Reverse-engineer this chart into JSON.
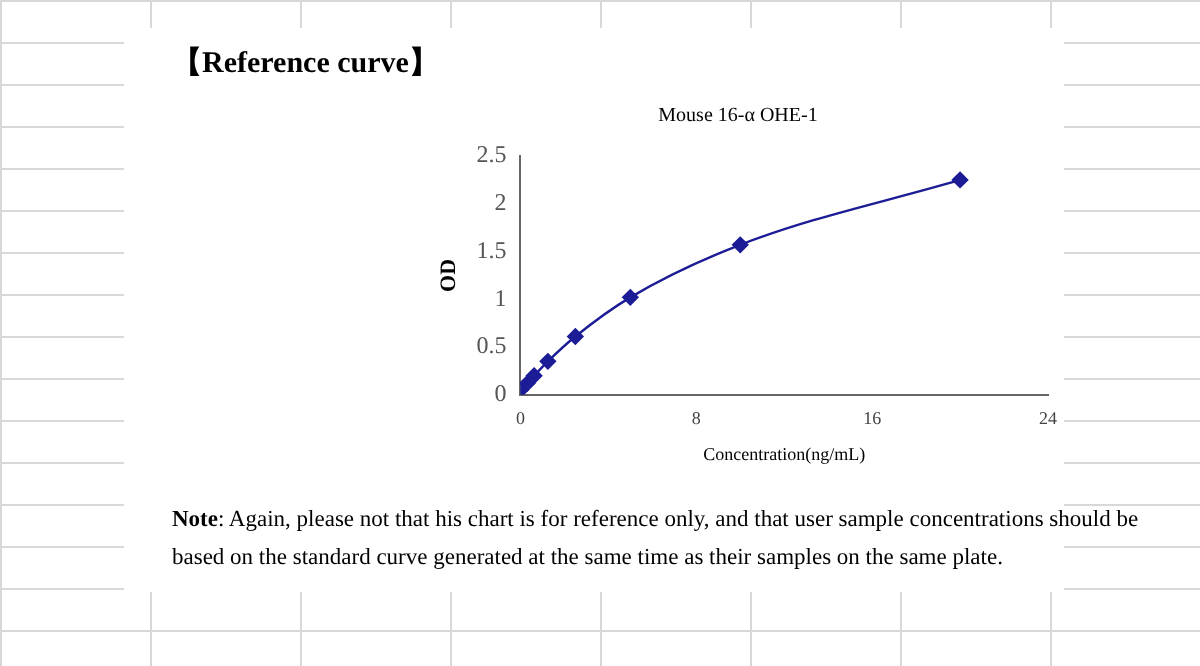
{
  "chart_data": {
    "type": "line",
    "title": "【Reference curve】",
    "subtitle": "Mouse 16-α OHE-1",
    "xlabel": "Concentration(ng/mL)",
    "ylabel": "OD",
    "x": [
      0,
      0.3125,
      0.625,
      1.25,
      2.5,
      5,
      10,
      20
    ],
    "series": [
      {
        "color": "#1c1c96",
        "values": [
          0.05,
          0.12,
          0.2,
          0.35,
          0.61,
          1.02,
          1.57,
          2.25
        ]
      }
    ],
    "xlim": [
      0,
      24
    ],
    "xticks": [
      0,
      8,
      16,
      24
    ],
    "ylim": [
      0,
      2.5
    ],
    "yticks": [
      0,
      0.5,
      1,
      1.5,
      2,
      2.5
    ],
    "marker": "diamond",
    "line_style": "solid",
    "grid": false,
    "legend": false,
    "annotations": [
      "Note: Again, please not that his chart is for reference only, and that user sample concentrations should be based on the standard curve generated at the same time as their samples on the same plate."
    ]
  }
}
